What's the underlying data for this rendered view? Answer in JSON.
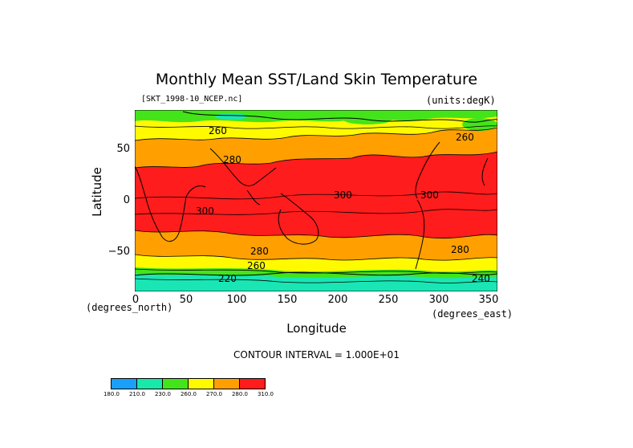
{
  "figure": {
    "title": "Monthly Mean SST/Land Skin Temperature",
    "file": "[SKT_1998-10_NCEP.nc]",
    "units": "(units:degK)",
    "xlabel": "Longitude",
    "ylabel": "Latitude",
    "x_axis_unit": "(degrees_east)",
    "y_axis_unit": "(degrees_north)",
    "contour_interval": "CONTOUR INTERVAL = 1.000E+01"
  },
  "axes": {
    "xticks": [
      "0",
      "50",
      "100",
      "150",
      "200",
      "250",
      "300",
      "350"
    ],
    "yticks": [
      "50",
      "0",
      "−50"
    ]
  },
  "contour_labels": [
    {
      "text": "260"
    },
    {
      "text": "280"
    },
    {
      "text": "300"
    },
    {
      "text": "300"
    },
    {
      "text": "280"
    },
    {
      "text": "280"
    },
    {
      "text": "260"
    },
    {
      "text": "220"
    },
    {
      "text": "300"
    },
    {
      "text": "240"
    },
    {
      "text": "260"
    }
  ],
  "colorbar": {
    "levels": [
      "180.0",
      "210.0",
      "230.0",
      "260.0",
      "270.0",
      "280.0",
      "310.0"
    ],
    "colors": [
      "#1aa3ff",
      "#1aedb0",
      "#3ded3d",
      "#ffff00",
      "#ffff00",
      "#ffa500",
      "#ff1a1a"
    ],
    "display_colors": [
      "#19a0fa",
      "#18e8a8",
      "#44e41a",
      "#fffa00",
      "#ffa000",
      "#ff1c1c"
    ]
  },
  "map_colors": {
    "cold": "#19e6b4",
    "cool": "#44e41a",
    "mild": "#fffa00",
    "warm": "#ffa000",
    "hot": "#ff1c1c"
  }
}
